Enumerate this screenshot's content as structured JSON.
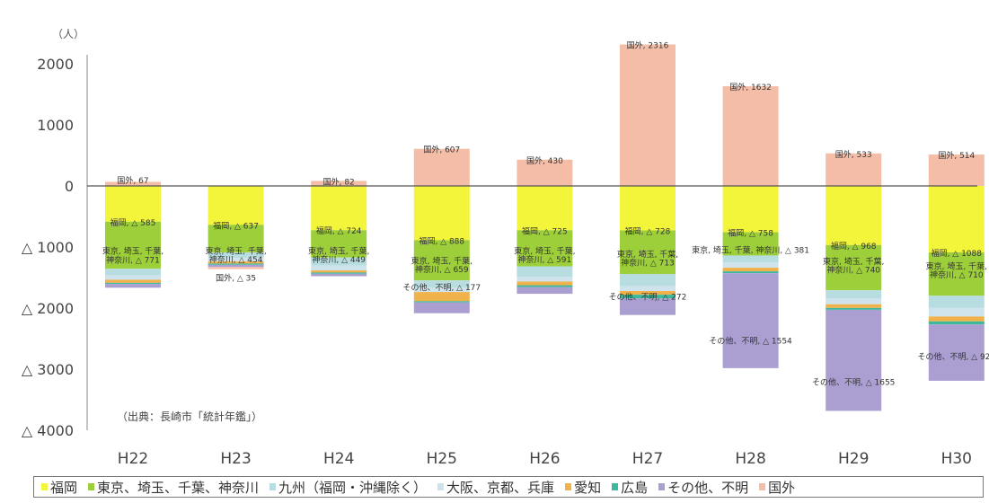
{
  "chart_data": {
    "type": "bar",
    "stacked": true,
    "unit": "（人）",
    "source": "（出典：長崎市「統計年鑑」）",
    "categories": [
      "H22",
      "H23",
      "H24",
      "H25",
      "H26",
      "H27",
      "H28",
      "H29",
      "H30"
    ],
    "yticks": [
      {
        "value": 2000,
        "label": "2000"
      },
      {
        "value": 1000,
        "label": "1000"
      },
      {
        "value": 0,
        "label": "0"
      },
      {
        "value": -1000,
        "label": "△ 1000"
      },
      {
        "value": -2000,
        "label": "△ 2000"
      },
      {
        "value": -3000,
        "label": "△ 3000"
      },
      {
        "value": -4000,
        "label": "△ 4000"
      }
    ],
    "ylim": [
      -4000,
      2000
    ],
    "series": [
      {
        "name": "福岡",
        "color": "#f3f53a",
        "values": [
          -585,
          -637,
          -724,
          -888,
          -725,
          -728,
          -758,
          -968,
          -1088
        ]
      },
      {
        "name": "東京、埼玉、千葉、神奈川",
        "color": "#9ccf3a",
        "values": [
          -771,
          -454,
          -449,
          -659,
          -591,
          -713,
          -381,
          -740,
          -710
        ]
      },
      {
        "name": "九州（福岡・沖縄除く）",
        "color": "#b8dde0",
        "values": [
          -110,
          -90,
          -130,
          -120,
          -170,
          -200,
          -110,
          -130,
          -200
        ]
      },
      {
        "name": "大阪、京都、兵庫",
        "color": "#cfe3ec",
        "values": [
          -70,
          -55,
          -80,
          -70,
          -80,
          -80,
          -90,
          -100,
          -140
        ]
      },
      {
        "name": "愛知",
        "color": "#f1b24b",
        "values": [
          -50,
          -35,
          -35,
          -150,
          -60,
          -60,
          -60,
          -60,
          -80
        ]
      },
      {
        "name": "広島",
        "color": "#3cb89a",
        "values": [
          -20,
          -20,
          -20,
          -20,
          -30,
          -60,
          -30,
          -30,
          -50
        ]
      },
      {
        "name": "その他、不明",
        "color": "#ab9fd2",
        "values": [
          -60,
          -35,
          -40,
          -177,
          -110,
          -272,
          -1554,
          -1655,
          -922
        ]
      },
      {
        "name": "国外",
        "color": "#f3bda8",
        "values": [
          67,
          -35,
          82,
          607,
          430,
          2316,
          1632,
          533,
          514
        ]
      }
    ],
    "data_labels": [
      {
        "col": 0,
        "value": -585,
        "text": "福岡, △ 585"
      },
      {
        "col": 0,
        "value": -1050,
        "text": "東京, 埼玉, 千葉,"
      },
      {
        "col": 0,
        "value": -1200,
        "text": "神奈川, △ 771"
      },
      {
        "col": 0,
        "value": 100,
        "text": "国外, 67"
      },
      {
        "col": 1,
        "value": -637,
        "text": "福岡, △ 637"
      },
      {
        "col": 1,
        "value": -1050,
        "text": "東京, 埼玉, 千葉,"
      },
      {
        "col": 1,
        "value": -1190,
        "text": "神奈川, △ 454"
      },
      {
        "col": 1,
        "value": -1490,
        "text": "国外, △ 35"
      },
      {
        "col": 2,
        "value": -724,
        "text": "福岡, △ 724"
      },
      {
        "col": 2,
        "value": -1050,
        "text": "東京, 埼玉, 千葉,"
      },
      {
        "col": 2,
        "value": -1190,
        "text": "神奈川, △ 449"
      },
      {
        "col": 2,
        "value": 82,
        "text": "国外, 82"
      },
      {
        "col": 3,
        "value": -888,
        "text": "福岡, △ 888"
      },
      {
        "col": 3,
        "value": -1210,
        "text": "東京, 埼玉, 千葉,"
      },
      {
        "col": 3,
        "value": -1350,
        "text": "神奈川, △ 659"
      },
      {
        "col": 3,
        "value": -1650,
        "text": "その他、不明, △ 177"
      },
      {
        "col": 3,
        "value": 607,
        "text": "国外, 607"
      },
      {
        "col": 4,
        "value": -725,
        "text": "福岡, △ 725"
      },
      {
        "col": 4,
        "value": -1050,
        "text": "東京, 埼玉, 千葉,"
      },
      {
        "col": 4,
        "value": -1190,
        "text": "神奈川, △ 591"
      },
      {
        "col": 4,
        "value": 430,
        "text": "国外, 430"
      },
      {
        "col": 5,
        "value": -728,
        "text": "福岡, △ 728"
      },
      {
        "col": 5,
        "value": -1100,
        "text": "東京, 埼玉, 千葉,"
      },
      {
        "col": 5,
        "value": -1240,
        "text": "神奈川, △ 713"
      },
      {
        "col": 5,
        "value": -1800,
        "text": "その他、不明, △ 272"
      },
      {
        "col": 5,
        "value": 2316,
        "text": "国外, 2316"
      },
      {
        "col": 6,
        "value": -758,
        "text": "福岡, △ 758"
      },
      {
        "col": 6,
        "value": -1040,
        "text": "東京, 埼玉, 千葉, 神奈川, △ 381"
      },
      {
        "col": 6,
        "value": -2520,
        "text": "その他、不明, △ 1554"
      },
      {
        "col": 6,
        "value": 1632,
        "text": "国外, 1632"
      },
      {
        "col": 7,
        "value": -968,
        "text": "福岡, △ 968"
      },
      {
        "col": 7,
        "value": -1220,
        "text": "東京, 埼玉, 千葉,"
      },
      {
        "col": 7,
        "value": -1360,
        "text": "神奈川, △ 740"
      },
      {
        "col": 7,
        "value": -3200,
        "text": "その他、不明, △ 1655"
      },
      {
        "col": 7,
        "value": 533,
        "text": "国外, 533"
      },
      {
        "col": 8,
        "value": -1088,
        "text": "福岡, △ 1088"
      },
      {
        "col": 8,
        "value": -1300,
        "text": "東京, 埼玉, 千葉,"
      },
      {
        "col": 8,
        "value": -1440,
        "text": "神奈川, △ 710"
      },
      {
        "col": 8,
        "value": -2780,
        "text": "その他、不明, △ 922"
      },
      {
        "col": 8,
        "value": 514,
        "text": "国外, 514"
      }
    ]
  }
}
